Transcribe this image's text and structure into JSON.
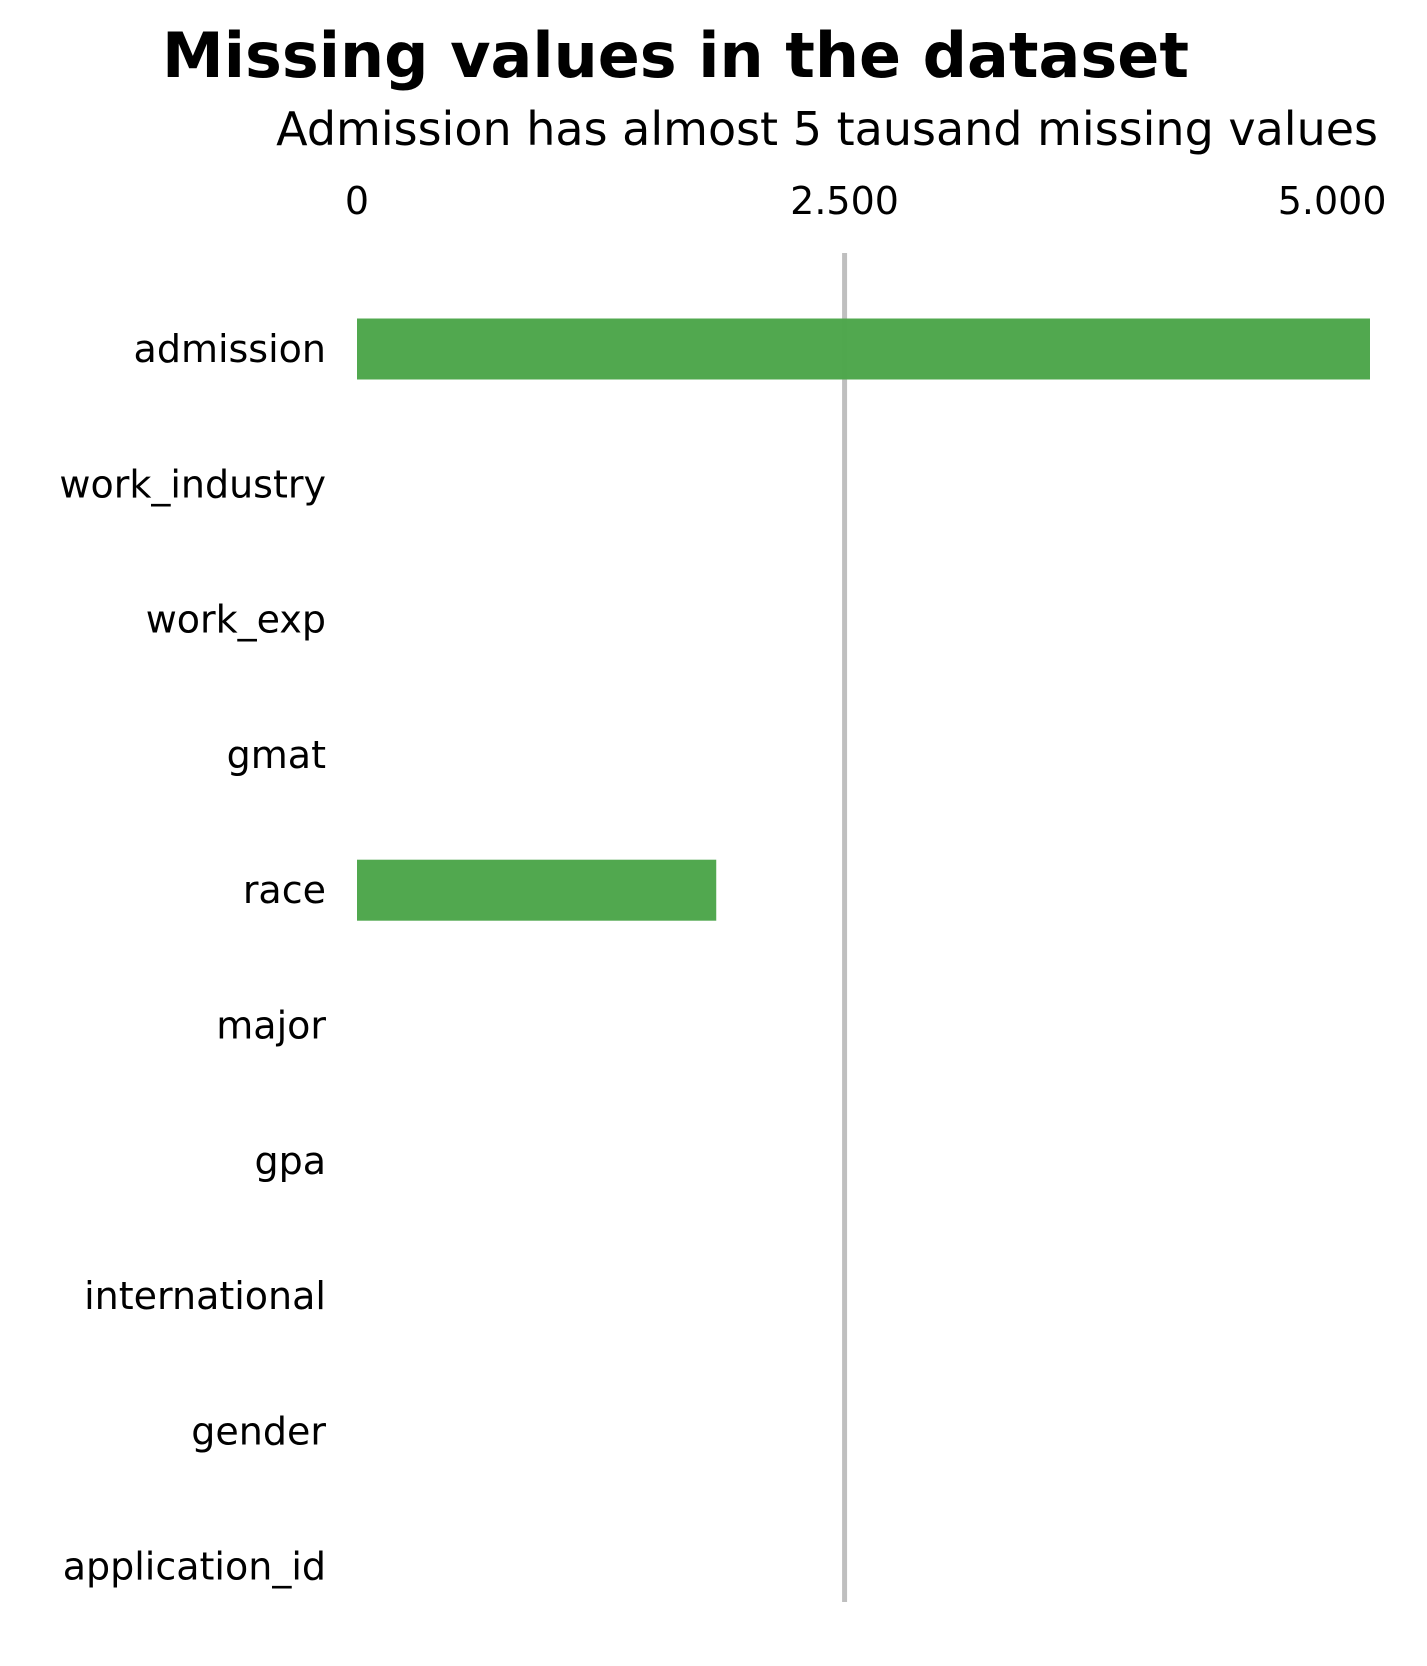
{
  "chart_data": {
    "type": "bar",
    "orientation": "horizontal",
    "title": "Missing values in the dataset",
    "subtitle": "Admission has almost 5 tausand missing values",
    "xlabel": "",
    "ylabel": "",
    "categories": [
      "admission",
      "work_industry",
      "work_exp",
      "gmat",
      "race",
      "major",
      "gpa",
      "international",
      "gender",
      "application_id"
    ],
    "values": [
      5194,
      0,
      0,
      0,
      1842,
      0,
      0,
      0,
      0,
      0
    ],
    "xlim": [
      0,
      5194
    ],
    "xticks": [
      0,
      2500,
      5000
    ],
    "xtick_labels": [
      "0",
      "2.500",
      "5.000"
    ],
    "xaxis_position": "top",
    "reference_line": 2500,
    "grid": false,
    "legend": "none",
    "colors": {
      "bar": "#4ea64b",
      "reference_line": "#bfbfbf",
      "text": "#000000"
    }
  }
}
